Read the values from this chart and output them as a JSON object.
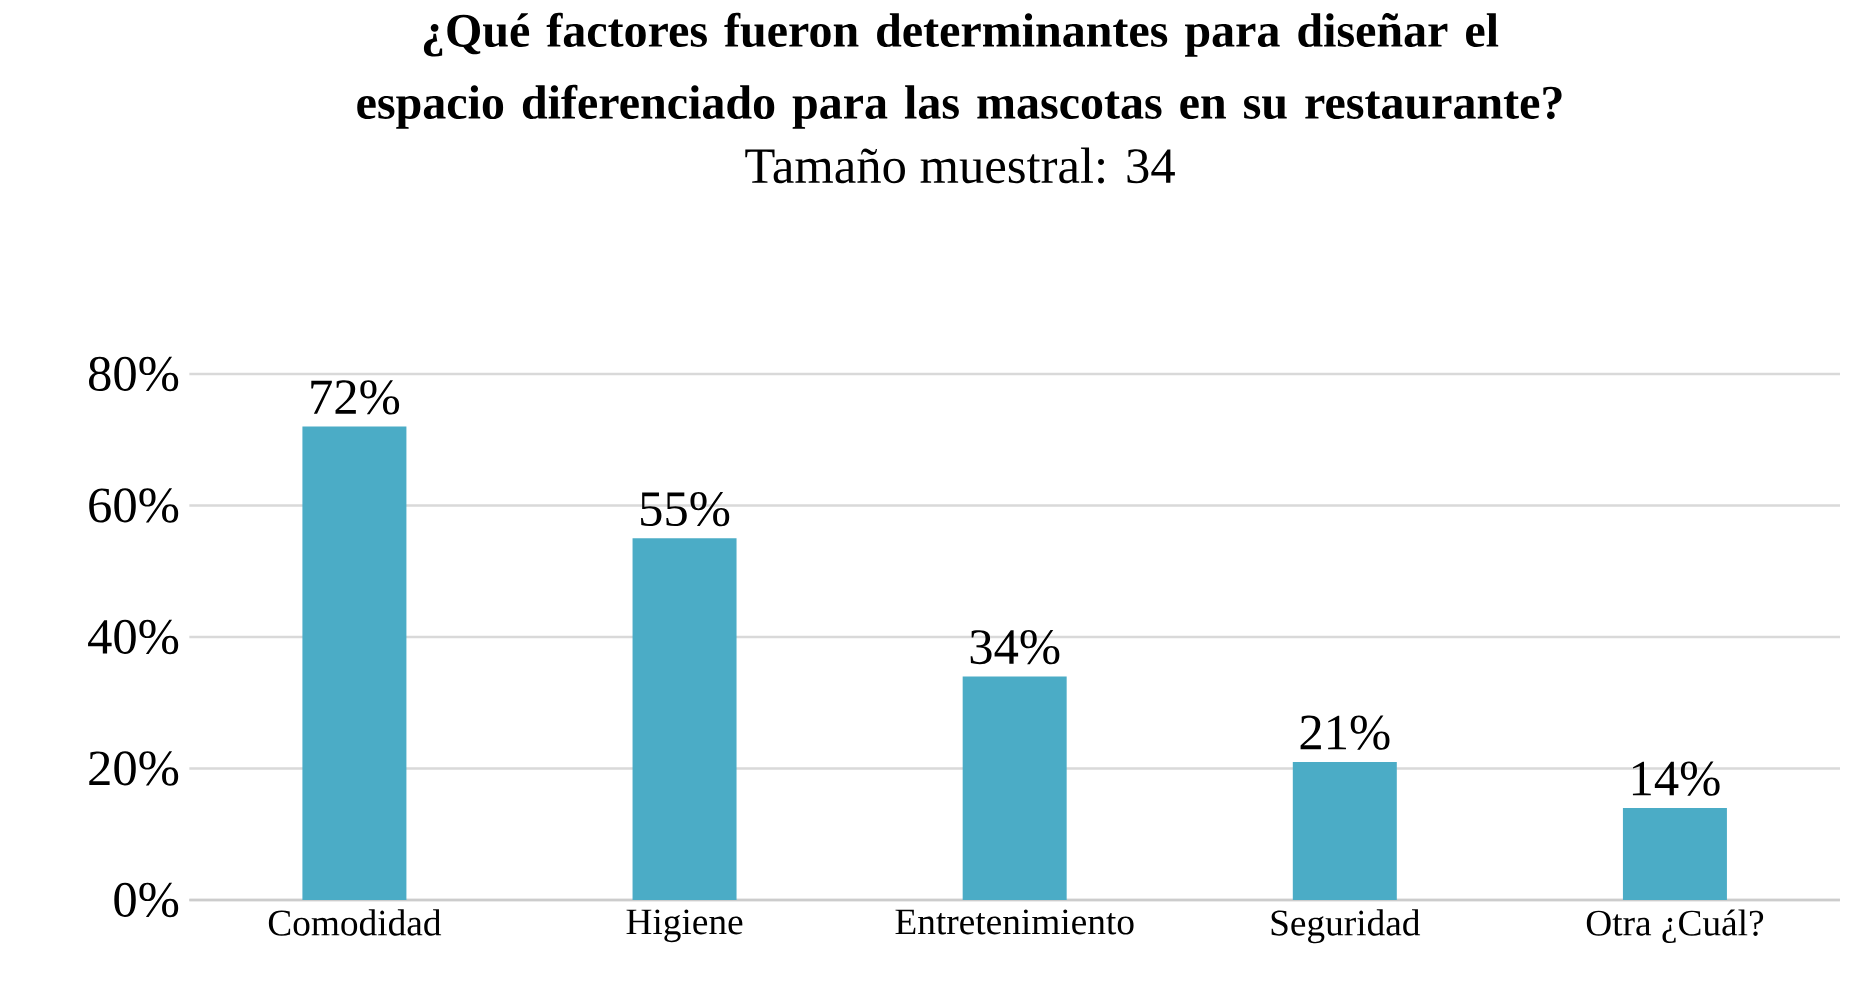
{
  "chart_data": {
    "type": "bar",
    "title": "¿Qué factores fueron determinantes para diseñar el espacio diferenciado para las mascotas en su restaurante?",
    "subtitle": "Tamaño muestral: 34",
    "categories": [
      "Comodidad",
      "Higiene",
      "Entretenimiento",
      "Seguridad",
      "Otra ¿Cuál?"
    ],
    "values": [
      72,
      55,
      34,
      21,
      14
    ],
    "value_labels": [
      "72%",
      "55%",
      "34%",
      "21%",
      "14%"
    ],
    "color": "#4bacc6",
    "ylim": [
      0,
      80
    ],
    "yticks": [
      {
        "value": 0,
        "label": "0%"
      },
      {
        "value": 20,
        "label": "20%"
      },
      {
        "value": 40,
        "label": "40%"
      },
      {
        "value": 60,
        "label": "60%"
      },
      {
        "value": 80,
        "label": "80%"
      }
    ],
    "grid": "y"
  }
}
